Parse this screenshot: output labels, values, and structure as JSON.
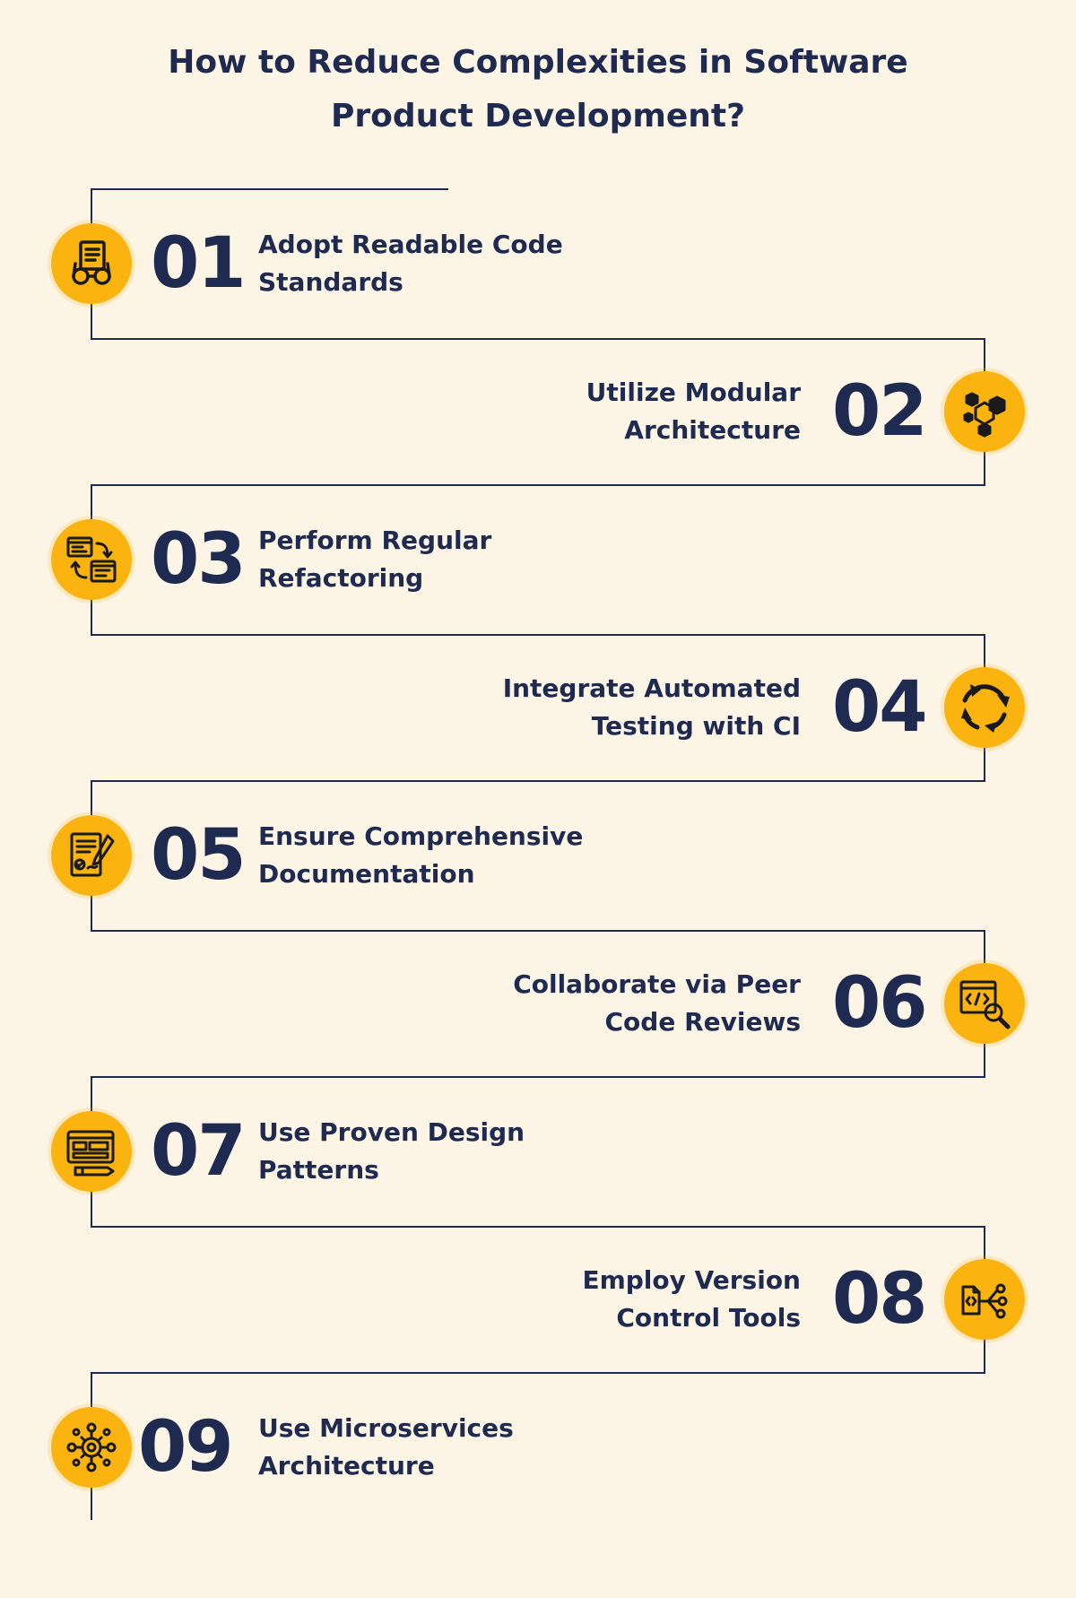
{
  "title": {
    "line1": "How to Reduce Complexities in Software",
    "line2": "Product Development?"
  },
  "colors": {
    "background": "#fcf5e6",
    "accent": "#fbb40f",
    "text": "#1e2a4f",
    "line": "#1e2a4f"
  },
  "steps": [
    {
      "number": "01",
      "line1": "Adopt Readable Code",
      "line2": "Standards",
      "icon": "code-review-glasses-icon"
    },
    {
      "number": "02",
      "line1": "Utilize Modular",
      "line2": "Architecture",
      "icon": "modular-cubes-icon"
    },
    {
      "number": "03",
      "line1": "Perform Regular",
      "line2": "Refactoring",
      "icon": "refactor-windows-icon"
    },
    {
      "number": "04",
      "line1": "Integrate Automated",
      "line2": "Testing with CI",
      "icon": "cycle-arrows-icon"
    },
    {
      "number": "05",
      "line1": "Ensure Comprehensive",
      "line2": "Documentation",
      "icon": "document-sign-icon"
    },
    {
      "number": "06",
      "line1": "Collaborate via Peer",
      "line2": "Code Reviews",
      "icon": "code-search-icon"
    },
    {
      "number": "07",
      "line1": "Use Proven Design",
      "line2": "Patterns",
      "icon": "blueprint-icon"
    },
    {
      "number": "08",
      "line1": "Employ Version",
      "line2": "Control Tools",
      "icon": "version-branch-icon"
    },
    {
      "number": "09",
      "line1": "Use Microservices",
      "line2": "Architecture",
      "icon": "network-gear-icon"
    }
  ]
}
